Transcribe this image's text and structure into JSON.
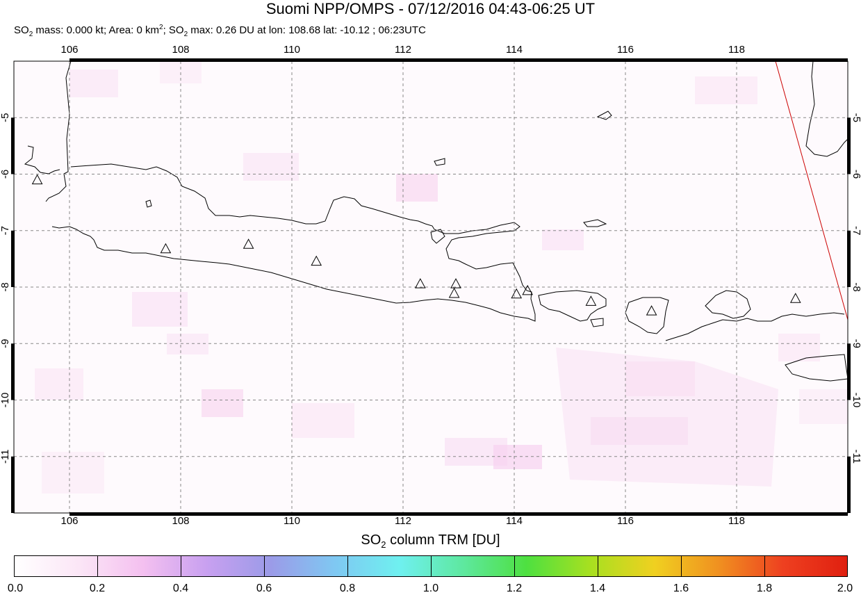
{
  "header": {
    "title": "Suomi NPP/OMPS - 07/12/2016 04:43-06:25 UT",
    "subtitle_parts": [
      "SO",
      "2",
      " mass: 0.000 kt; Area: 0 km",
      "2",
      "; SO",
      "2",
      " max: 0.26 DU at lon: 108.68 lat: -10.12 ; 06:23UTC"
    ]
  },
  "map": {
    "lon_range": [
      105,
      120
    ],
    "lat_range": [
      -12.0,
      -4.0
    ],
    "lon_ticks": [
      "106",
      "108",
      "110",
      "112",
      "114",
      "116",
      "118"
    ],
    "lat_ticks": [
      "-5",
      "-6",
      "-7",
      "-8",
      "-9",
      "-10",
      "-11"
    ],
    "lon_tick_values": [
      106,
      108,
      110,
      112,
      114,
      116,
      118
    ],
    "lat_tick_values": [
      -5,
      -6,
      -7,
      -8,
      -9,
      -10,
      -11
    ],
    "grid": "dashed",
    "coast_color": "#000000",
    "swath_edge_color": "#cc0000",
    "volcano_marker": "triangle-icon",
    "volcanoes": [
      {
        "lon": 105.42,
        "lat": -6.1
      },
      {
        "lon": 107.73,
        "lat": -7.32
      },
      {
        "lon": 109.22,
        "lat": -7.24
      },
      {
        "lon": 110.44,
        "lat": -7.54
      },
      {
        "lon": 112.31,
        "lat": -7.94
      },
      {
        "lon": 112.95,
        "lat": -7.94
      },
      {
        "lon": 112.92,
        "lat": -8.11
      },
      {
        "lon": 114.04,
        "lat": -8.12
      },
      {
        "lon": 114.24,
        "lat": -8.06
      },
      {
        "lon": 115.38,
        "lat": -8.25
      },
      {
        "lon": 116.47,
        "lat": -8.42
      },
      {
        "lon": 119.06,
        "lat": -8.2
      }
    ]
  },
  "colorbar": {
    "title_parts": [
      "SO",
      "2",
      " column TRM [DU]"
    ],
    "ticks": [
      "0.0",
      "0.2",
      "0.4",
      "0.6",
      "0.8",
      "1.0",
      "1.2",
      "1.4",
      "1.6",
      "1.8",
      "2.0"
    ],
    "colors": [
      "#ffffff",
      "#fbe6f6",
      "#f4c0f0",
      "#c8a0f0",
      "#9b9be8",
      "#7fc8f2",
      "#6ff0f0",
      "#5ee8a0",
      "#4ee040",
      "#a8e020",
      "#f0d020",
      "#f09020",
      "#ee4020",
      "#e02010"
    ]
  }
}
